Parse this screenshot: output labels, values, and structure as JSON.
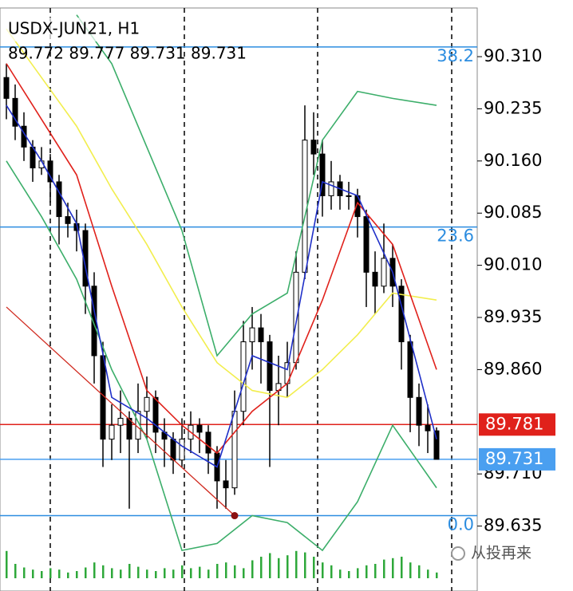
{
  "chart_data": {
    "type": "candlestick",
    "title": "USDX-JUN21, H1",
    "ohlc_header": "89.772 89.777 89.731 89.731",
    "watermark": "从投再来",
    "ylim": [
      89.56,
      90.38
    ],
    "yticks": [
      {
        "value": 90.31,
        "label": "90.310"
      },
      90.235,
      {
        "value": 90.16,
        "label": "90.160"
      },
      90.085,
      {
        "value": 90.01,
        "label": "90.010"
      },
      89.935,
      {
        "value": 89.86,
        "label": "89.860"
      },
      {
        "value": 89.71,
        "label": "89.710"
      },
      89.635
    ],
    "up_color": "#ffffff",
    "down_color": "#000000",
    "candles": [
      [
        90.28,
        90.3,
        90.22,
        90.25
      ],
      [
        90.25,
        90.27,
        90.19,
        90.21
      ],
      [
        90.21,
        90.23,
        90.16,
        90.18
      ],
      [
        90.18,
        90.19,
        90.13,
        90.15
      ],
      [
        90.15,
        90.18,
        90.14,
        90.16
      ],
      [
        90.16,
        90.17,
        90.1,
        90.13
      ],
      [
        90.13,
        90.14,
        90.04,
        90.08
      ],
      [
        90.08,
        90.1,
        90.05,
        90.07
      ],
      [
        90.07,
        90.09,
        90.03,
        90.06
      ],
      [
        90.06,
        90.07,
        89.94,
        89.98
      ],
      [
        89.98,
        90,
        89.84,
        89.88
      ],
      [
        89.88,
        89.9,
        89.72,
        89.76
      ],
      [
        89.76,
        89.81,
        89.73,
        89.78
      ],
      [
        89.78,
        89.83,
        89.74,
        89.79
      ],
      [
        89.79,
        89.8,
        89.66,
        89.76
      ],
      [
        89.76,
        89.84,
        89.74,
        89.8
      ],
      [
        89.8,
        89.85,
        89.76,
        89.82
      ],
      [
        89.82,
        89.83,
        89.74,
        89.77
      ],
      [
        89.77,
        89.79,
        89.72,
        89.76
      ],
      [
        89.76,
        89.77,
        89.71,
        89.73
      ],
      [
        89.73,
        89.79,
        89.72,
        89.76
      ],
      [
        89.76,
        89.8,
        89.74,
        89.78
      ],
      [
        89.78,
        89.79,
        89.74,
        89.77
      ],
      [
        89.77,
        89.78,
        89.71,
        89.74
      ],
      [
        89.74,
        89.75,
        89.66,
        89.7
      ],
      [
        89.7,
        89.73,
        89.66,
        89.69
      ],
      [
        89.69,
        89.83,
        89.68,
        89.8
      ],
      [
        89.8,
        89.93,
        89.78,
        89.9
      ],
      [
        89.9,
        89.95,
        89.86,
        89.92
      ],
      [
        89.92,
        89.94,
        89.84,
        89.9
      ],
      [
        89.9,
        89.91,
        89.72,
        89.83
      ],
      [
        89.83,
        89.88,
        89.78,
        89.84
      ],
      [
        89.84,
        89.9,
        89.82,
        89.87
      ],
      [
        89.87,
        90.03,
        89.86,
        90
      ],
      [
        90,
        90.24,
        89.99,
        90.19
      ],
      [
        90.19,
        90.23,
        90.14,
        90.17
      ],
      [
        90.17,
        90.19,
        90.08,
        90.11
      ],
      [
        90.11,
        90.16,
        90.09,
        90.13
      ],
      [
        90.13,
        90.14,
        90.09,
        90.11
      ],
      [
        90.11,
        90.13,
        90.09,
        90.11
      ],
      [
        90.11,
        90.12,
        90.05,
        90.08
      ],
      [
        90.08,
        90.09,
        89.95,
        90
      ],
      [
        90,
        90.03,
        89.94,
        89.98
      ],
      [
        89.98,
        90.07,
        89.97,
        90.02
      ],
      [
        90.02,
        90.04,
        89.95,
        89.98
      ],
      [
        89.98,
        89.99,
        89.86,
        89.9
      ],
      [
        89.9,
        89.91,
        89.77,
        89.82
      ],
      [
        89.82,
        89.84,
        89.75,
        89.78
      ],
      [
        89.78,
        89.81,
        89.74,
        89.772
      ],
      [
        89.772,
        89.777,
        89.731,
        89.731
      ]
    ],
    "line_x": [
      0,
      4,
      8,
      12,
      16,
      20,
      24,
      28,
      32,
      36,
      40,
      44,
      49
    ],
    "lines": [
      {
        "color": "#f2ee4e",
        "values": [
          90.35,
          90.28,
          90.21,
          90.12,
          90.04,
          89.95,
          89.87,
          89.83,
          89.82,
          89.86,
          89.91,
          89.97,
          89.96
        ]
      },
      {
        "color": "#3cae6a",
        "values": [
          null,
          null,
          90.37,
          90.3,
          90.18,
          90.06,
          89.88,
          89.94,
          89.97,
          90.19,
          90.26,
          90.25,
          90.24
        ]
      },
      {
        "color": "#3cae6a",
        "values": [
          90.16,
          90.08,
          89.99,
          89.86,
          89.76,
          89.6,
          89.61,
          89.65,
          89.64,
          89.6,
          89.67,
          89.78,
          89.69
        ]
      },
      {
        "color": "#e0211b",
        "values": [
          90.3,
          90.22,
          90.14,
          89.98,
          89.83,
          89.78,
          89.74,
          89.8,
          89.84,
          89.96,
          90.1,
          90.04,
          89.86
        ]
      },
      {
        "color": "#1f2fc8",
        "values": [
          90.24,
          90.16,
          90.07,
          89.82,
          89.79,
          89.75,
          89.72,
          89.88,
          89.86,
          90.13,
          90.11,
          90,
          89.76
        ]
      }
    ],
    "trendline": {
      "color": "#d0291e",
      "x": [
        0,
        26
      ],
      "values": [
        89.95,
        89.65
      ]
    },
    "levels": [
      {
        "label": "38.2",
        "value": 90.324
      },
      {
        "label": "23.6",
        "value": 90.065
      },
      {
        "label": "0.0",
        "value": 89.65
      }
    ],
    "level_color": "#2c8de0",
    "price_lines": [
      {
        "value": 89.781,
        "color": "#e0211b"
      },
      {
        "value": 89.731,
        "color": "#4a9ff0"
      }
    ],
    "volume_color": "#2ea83a",
    "volume_lim": [
      0,
      50
    ],
    "volumes": [
      38,
      20,
      15,
      12,
      10,
      14,
      12,
      8,
      10,
      15,
      22,
      18,
      14,
      12,
      20,
      16,
      12,
      10,
      14,
      12,
      18,
      14,
      16,
      12,
      20,
      22,
      18,
      14,
      25,
      30,
      35,
      28,
      32,
      38,
      36,
      30,
      22,
      18,
      12,
      10,
      14,
      18,
      20,
      26,
      28,
      30,
      22,
      18,
      12,
      8
    ]
  }
}
